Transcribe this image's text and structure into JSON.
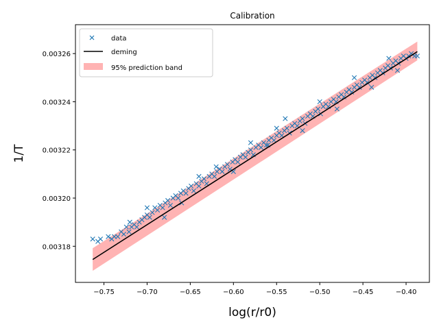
{
  "chart_data": {
    "type": "scatter",
    "title": "Calibration",
    "xlabel": "log(r/r0)",
    "ylabel": "1/T",
    "xlim": [
      -0.783,
      -0.373
    ],
    "ylim": [
      0.003165,
      0.003272
    ],
    "xticks": [
      -0.75,
      -0.7,
      -0.65,
      -0.6,
      -0.55,
      -0.5,
      -0.45,
      -0.4
    ],
    "xtick_labels": [
      "−0.75",
      "−0.70",
      "−0.65",
      "−0.60",
      "−0.55",
      "−0.50",
      "−0.45",
      "−0.40"
    ],
    "yticks": [
      0.00318,
      0.0032,
      0.00322,
      0.00324,
      0.00326
    ],
    "ytick_labels": [
      "0.00318",
      "0.00320",
      "0.00322",
      "0.00324",
      "0.00326"
    ],
    "grid": false,
    "legend_position": "top-left",
    "legend": [
      {
        "label": "data",
        "kind": "marker"
      },
      {
        "label": "deming",
        "kind": "line"
      },
      {
        "label": "95% prediction band",
        "kind": "patch"
      }
    ],
    "colors": {
      "data": "#1f77b4",
      "fit": "#000000",
      "band": "#ff9999"
    },
    "fit_line": {
      "x": [
        -0.763,
        -0.387
      ],
      "y": [
        0.0031745,
        0.0032608
      ]
    },
    "band_lower": {
      "x": [
        -0.763,
        -0.387
      ],
      "y": [
        0.0031698,
        0.0032572
      ]
    },
    "band_upper": {
      "x": [
        -0.763,
        -0.387
      ],
      "y": [
        0.0031792,
        0.003265
      ]
    },
    "series": [
      {
        "name": "data",
        "marker": "x",
        "points": [
          [
            -0.763,
            0.003183
          ],
          [
            -0.757,
            0.003182
          ],
          [
            -0.754,
            0.003183
          ],
          [
            -0.745,
            0.003184
          ],
          [
            -0.741,
            0.003183
          ],
          [
            -0.738,
            0.003184
          ],
          [
            -0.734,
            0.003184
          ],
          [
            -0.73,
            0.003186
          ],
          [
            -0.727,
            0.003185
          ],
          [
            -0.724,
            0.003188
          ],
          [
            -0.721,
            0.003186
          ],
          [
            -0.718,
            0.003188
          ],
          [
            -0.715,
            0.003189
          ],
          [
            -0.712,
            0.003188
          ],
          [
            -0.709,
            0.00319
          ],
          [
            -0.706,
            0.003191
          ],
          [
            -0.703,
            0.003192
          ],
          [
            -0.7,
            0.003193
          ],
          [
            -0.697,
            0.003192
          ],
          [
            -0.694,
            0.003194
          ],
          [
            -0.691,
            0.003196
          ],
          [
            -0.688,
            0.003195
          ],
          [
            -0.685,
            0.003197
          ],
          [
            -0.682,
            0.003196
          ],
          [
            -0.679,
            0.003198
          ],
          [
            -0.676,
            0.003199
          ],
          [
            -0.673,
            0.003197
          ],
          [
            -0.67,
            0.0032
          ],
          [
            -0.667,
            0.003201
          ],
          [
            -0.664,
            0.0032
          ],
          [
            -0.661,
            0.003202
          ],
          [
            -0.658,
            0.003203
          ],
          [
            -0.655,
            0.003202
          ],
          [
            -0.652,
            0.003204
          ],
          [
            -0.649,
            0.003205
          ],
          [
            -0.646,
            0.003203
          ],
          [
            -0.643,
            0.003206
          ],
          [
            -0.64,
            0.003205
          ],
          [
            -0.637,
            0.003207
          ],
          [
            -0.634,
            0.003208
          ],
          [
            -0.631,
            0.003206
          ],
          [
            -0.628,
            0.003209
          ],
          [
            -0.625,
            0.00321
          ],
          [
            -0.622,
            0.003209
          ],
          [
            -0.619,
            0.003211
          ],
          [
            -0.616,
            0.003212
          ],
          [
            -0.613,
            0.003211
          ],
          [
            -0.61,
            0.003213
          ],
          [
            -0.607,
            0.003214
          ],
          [
            -0.604,
            0.003212
          ],
          [
            -0.601,
            0.003215
          ],
          [
            -0.598,
            0.003216
          ],
          [
            -0.595,
            0.003215
          ],
          [
            -0.592,
            0.003217
          ],
          [
            -0.589,
            0.003218
          ],
          [
            -0.586,
            0.003217
          ],
          [
            -0.583,
            0.003219
          ],
          [
            -0.58,
            0.00322
          ],
          [
            -0.577,
            0.003218
          ],
          [
            -0.574,
            0.003221
          ],
          [
            -0.571,
            0.003222
          ],
          [
            -0.568,
            0.003221
          ],
          [
            -0.565,
            0.003223
          ],
          [
            -0.562,
            0.003222
          ],
          [
            -0.559,
            0.003224
          ],
          [
            -0.556,
            0.003225
          ],
          [
            -0.553,
            0.003224
          ],
          [
            -0.55,
            0.003226
          ],
          [
            -0.547,
            0.003227
          ],
          [
            -0.544,
            0.003226
          ],
          [
            -0.541,
            0.003228
          ],
          [
            -0.538,
            0.003229
          ],
          [
            -0.535,
            0.003227
          ],
          [
            -0.532,
            0.00323
          ],
          [
            -0.529,
            0.003231
          ],
          [
            -0.526,
            0.00323
          ],
          [
            -0.523,
            0.003232
          ],
          [
            -0.52,
            0.003233
          ],
          [
            -0.517,
            0.003231
          ],
          [
            -0.514,
            0.003234
          ],
          [
            -0.511,
            0.003235
          ],
          [
            -0.508,
            0.003234
          ],
          [
            -0.505,
            0.003236
          ],
          [
            -0.502,
            0.003237
          ],
          [
            -0.499,
            0.003235
          ],
          [
            -0.496,
            0.003238
          ],
          [
            -0.493,
            0.003239
          ],
          [
            -0.49,
            0.003238
          ],
          [
            -0.487,
            0.00324
          ],
          [
            -0.484,
            0.003241
          ],
          [
            -0.481,
            0.00324
          ],
          [
            -0.478,
            0.003242
          ],
          [
            -0.475,
            0.003243
          ],
          [
            -0.472,
            0.003242
          ],
          [
            -0.469,
            0.003244
          ],
          [
            -0.466,
            0.003245
          ],
          [
            -0.463,
            0.003244
          ],
          [
            -0.46,
            0.003246
          ],
          [
            -0.457,
            0.003247
          ],
          [
            -0.454,
            0.003246
          ],
          [
            -0.451,
            0.003248
          ],
          [
            -0.448,
            0.003249
          ],
          [
            -0.445,
            0.003248
          ],
          [
            -0.442,
            0.00325
          ],
          [
            -0.439,
            0.003251
          ],
          [
            -0.436,
            0.00325
          ],
          [
            -0.433,
            0.003252
          ],
          [
            -0.43,
            0.003253
          ],
          [
            -0.427,
            0.003252
          ],
          [
            -0.424,
            0.003254
          ],
          [
            -0.421,
            0.003255
          ],
          [
            -0.418,
            0.003254
          ],
          [
            -0.415,
            0.003256
          ],
          [
            -0.412,
            0.003257
          ],
          [
            -0.409,
            0.003256
          ],
          [
            -0.406,
            0.003258
          ],
          [
            -0.403,
            0.003259
          ],
          [
            -0.4,
            0.003258
          ],
          [
            -0.397,
            0.003259
          ],
          [
            -0.394,
            0.00326
          ],
          [
            -0.39,
            0.003259
          ],
          [
            -0.387,
            0.003259
          ],
          [
            -0.56,
            0.003222
          ],
          [
            -0.54,
            0.003233
          ],
          [
            -0.5,
            0.00324
          ],
          [
            -0.62,
            0.003213
          ],
          [
            -0.66,
            0.003198
          ],
          [
            -0.46,
            0.00325
          ],
          [
            -0.44,
            0.003246
          ],
          [
            -0.58,
            0.003223
          ],
          [
            -0.7,
            0.003196
          ],
          [
            -0.72,
            0.00319
          ],
          [
            -0.52,
            0.003228
          ],
          [
            -0.48,
            0.003237
          ],
          [
            -0.6,
            0.003211
          ],
          [
            -0.64,
            0.003209
          ],
          [
            -0.42,
            0.003258
          ],
          [
            -0.41,
            0.003253
          ],
          [
            -0.68,
            0.003192
          ],
          [
            -0.55,
            0.003229
          ]
        ]
      }
    ]
  }
}
